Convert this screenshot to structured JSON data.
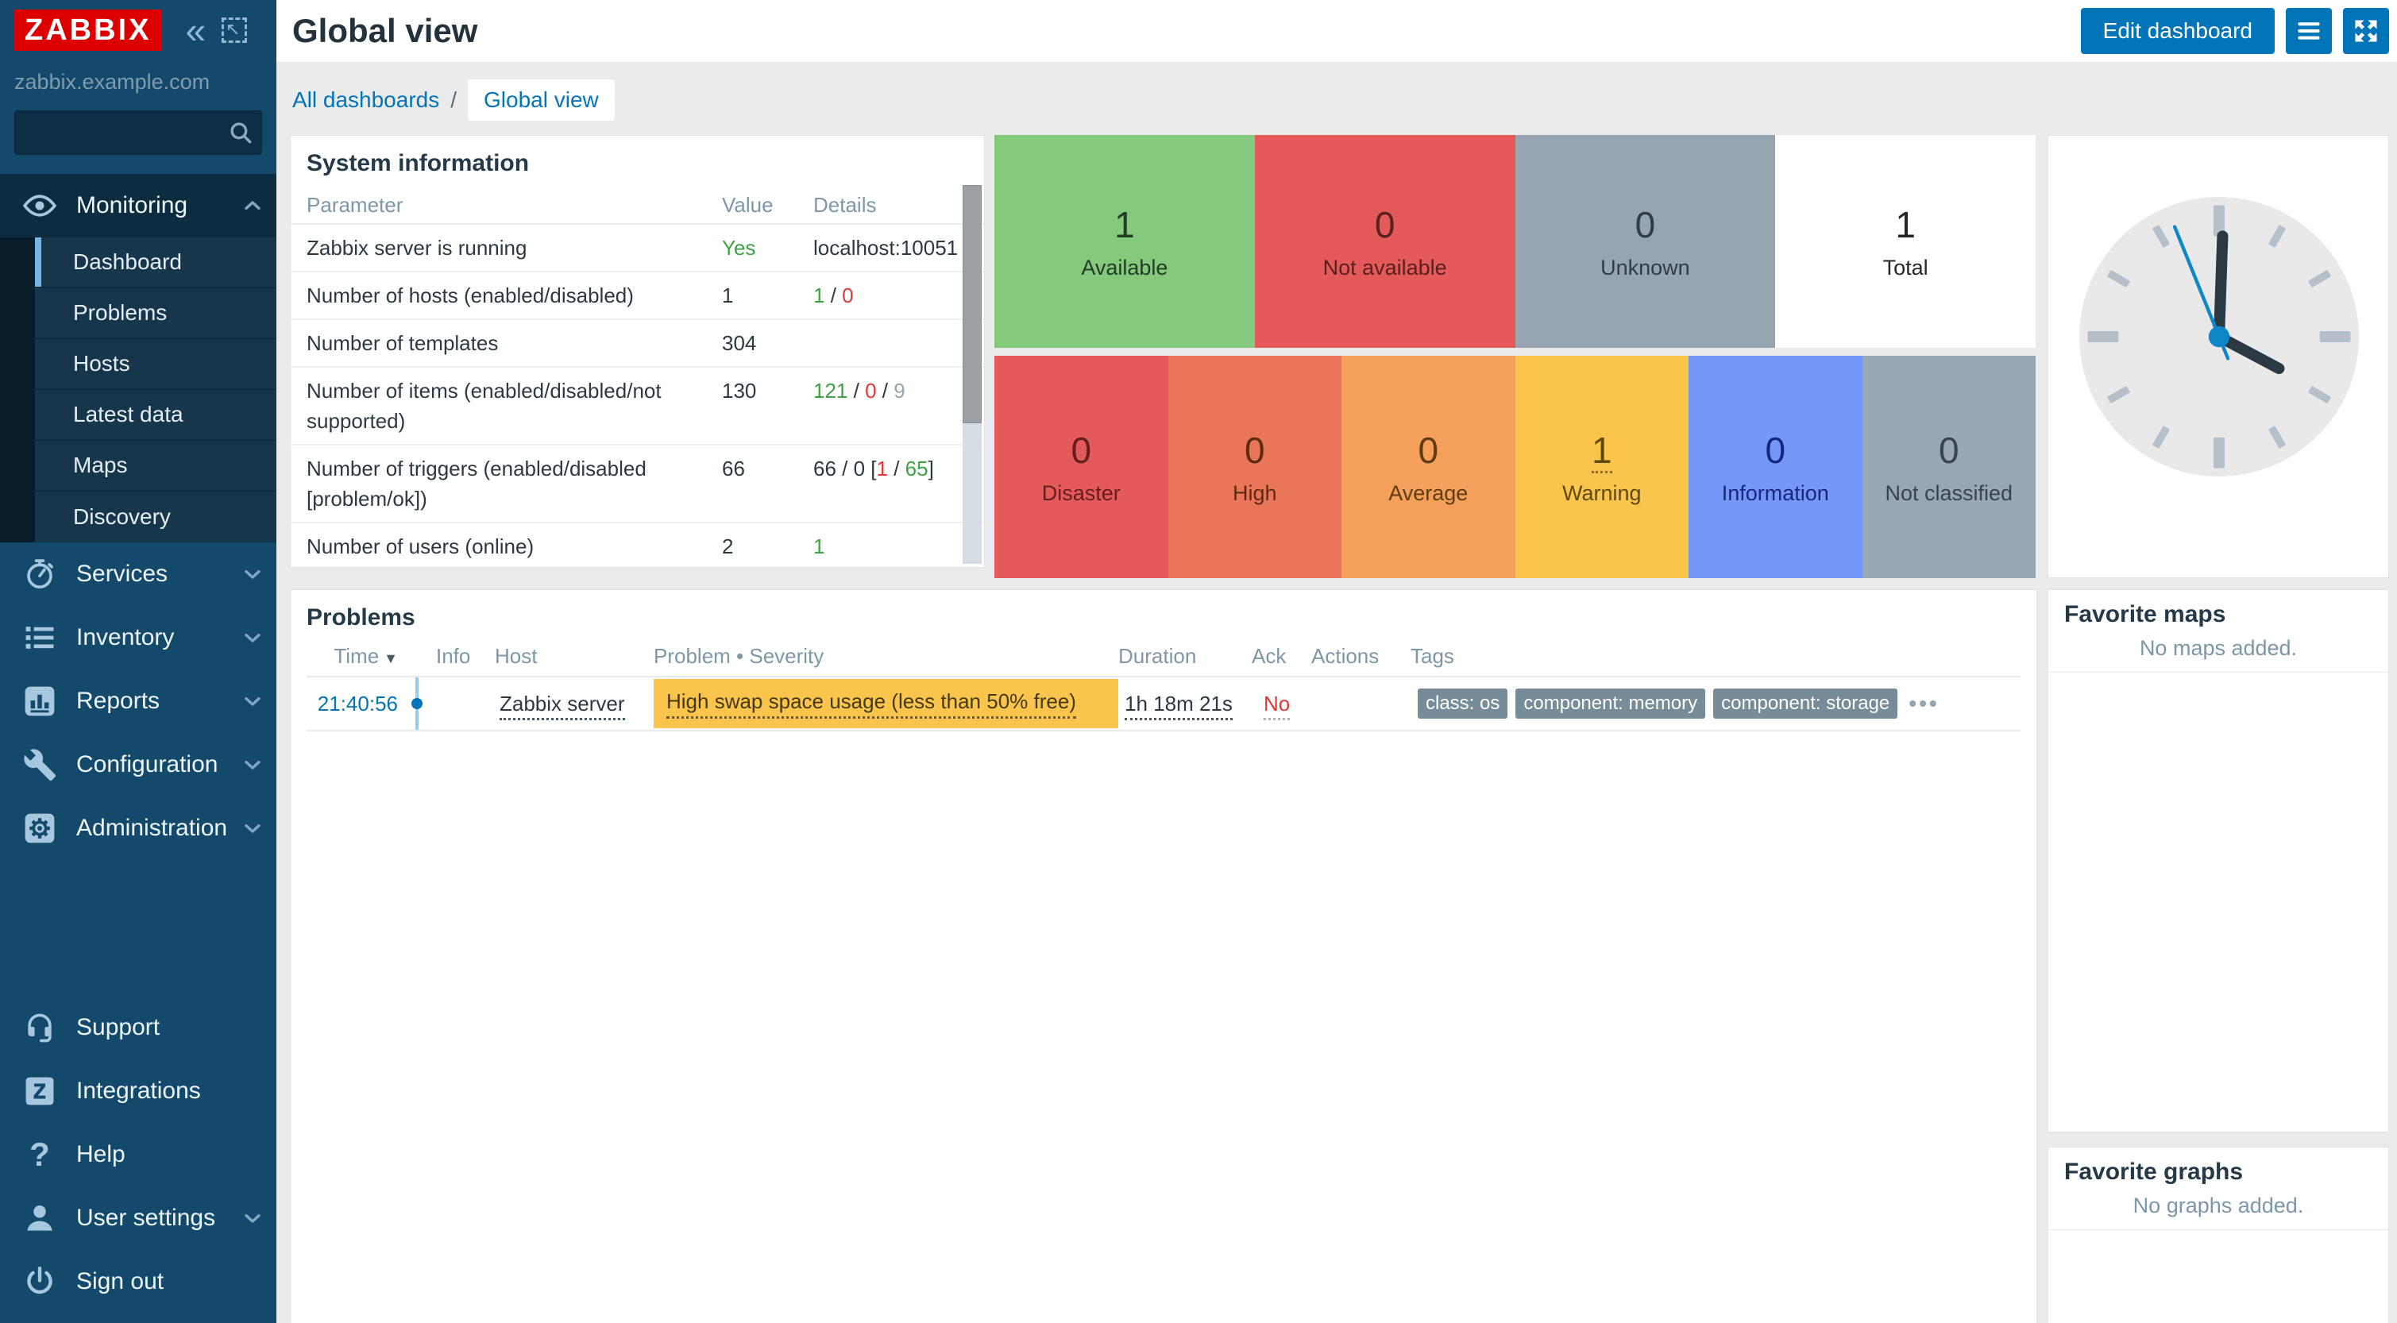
{
  "sidebar": {
    "logo_text": "ZABBIX",
    "server_name": "zabbix.example.com",
    "search": {
      "placeholder": ""
    },
    "sections": [
      {
        "label": "Monitoring",
        "icon": "eye-icon",
        "active": true,
        "expanded": true,
        "submenu": [
          {
            "label": "Dashboard",
            "active": true
          },
          {
            "label": "Problems"
          },
          {
            "label": "Hosts"
          },
          {
            "label": "Latest data"
          },
          {
            "label": "Maps"
          },
          {
            "label": "Discovery"
          }
        ]
      },
      {
        "label": "Services",
        "icon": "stopwatch-icon"
      },
      {
        "label": "Inventory",
        "icon": "list-icon"
      },
      {
        "label": "Reports",
        "icon": "bar-chart-icon"
      },
      {
        "label": "Configuration",
        "icon": "wrench-icon"
      },
      {
        "label": "Administration",
        "icon": "gear-icon"
      }
    ],
    "footer": [
      {
        "label": "Support",
        "icon": "headset-icon"
      },
      {
        "label": "Integrations",
        "icon": "z-square-icon"
      },
      {
        "label": "Help",
        "icon": "question-icon"
      },
      {
        "label": "User settings",
        "icon": "user-icon",
        "chevron": true
      },
      {
        "label": "Sign out",
        "icon": "power-icon"
      }
    ]
  },
  "header": {
    "title": "Global view",
    "edit_button": "Edit dashboard"
  },
  "breadcrumb": {
    "links": [
      "All dashboards"
    ],
    "separator": "/",
    "current": "Global view"
  },
  "system_information": {
    "title": "System information",
    "columns": [
      "Parameter",
      "Value",
      "Details"
    ],
    "rows": [
      {
        "parameter": "Zabbix server is running",
        "value": "Yes",
        "value_color": "#3fa243",
        "details": [
          {
            "text": "localhost:10051"
          }
        ]
      },
      {
        "parameter": "Number of hosts (enabled/disabled)",
        "value": "1",
        "details": [
          {
            "text": "1",
            "color": "#3fa243"
          },
          {
            "text": " / "
          },
          {
            "text": "0",
            "color": "#e33734"
          }
        ]
      },
      {
        "parameter": "Number of templates",
        "value": "304",
        "details": []
      },
      {
        "parameter": "Number of items (enabled/disabled/not supported)",
        "value": "130",
        "details": [
          {
            "text": "121",
            "color": "#3fa243"
          },
          {
            "text": " / "
          },
          {
            "text": "0",
            "color": "#e33734"
          },
          {
            "text": " / "
          },
          {
            "text": "9",
            "color": "#97a5af"
          }
        ]
      },
      {
        "parameter": "Number of triggers (enabled/disabled [problem/ok])",
        "value": "66",
        "details": [
          {
            "text": "66 / 0 ["
          },
          {
            "text": "1",
            "color": "#e33734"
          },
          {
            "text": " / "
          },
          {
            "text": "65",
            "color": "#3fa243"
          },
          {
            "text": "]"
          }
        ]
      },
      {
        "parameter": "Number of users (online)",
        "value": "2",
        "details": [
          {
            "text": "1",
            "color": "#3fa243"
          }
        ]
      }
    ]
  },
  "host_availability": {
    "blocks": [
      {
        "value": "1",
        "label": "Available",
        "bg": "#85c97d",
        "fg": "#233c26"
      },
      {
        "value": "0",
        "label": "Not available",
        "bg": "#e45959",
        "fg": "#5a201d"
      },
      {
        "value": "0",
        "label": "Unknown",
        "bg": "#97a5b1",
        "fg": "#323c44"
      },
      {
        "value": "1",
        "label": "Total",
        "bg": "#ffffff",
        "fg": "#262626"
      }
    ]
  },
  "problems_by_severity": {
    "blocks": [
      {
        "value": "0",
        "label": "Disaster",
        "bg": "#e45959",
        "fg": "#641f1c"
      },
      {
        "value": "0",
        "label": "High",
        "bg": "#e97659",
        "fg": "#5e2a10"
      },
      {
        "value": "0",
        "label": "Average",
        "bg": "#f4a05a",
        "fg": "#5e3c0e"
      },
      {
        "value": "1",
        "label": "Warning",
        "bg": "#fbc44d",
        "fg": "#5f4a0e",
        "link": true
      },
      {
        "value": "0",
        "label": "Information",
        "bg": "#7598f7",
        "fg": "#18277e"
      },
      {
        "value": "0",
        "label": "Not classified",
        "bg": "#99a7b3",
        "fg": "#394450"
      }
    ]
  },
  "problems": {
    "title": "Problems",
    "columns": [
      "Time",
      "",
      "Info",
      "Host",
      "Problem • Severity",
      "Duration",
      "Ack",
      "Actions",
      "Tags"
    ],
    "sort_indicator": "▼",
    "rows": [
      {
        "time": "21:40:56",
        "host": "Zabbix server",
        "problem": "High swap space usage (less than 50% free)",
        "severity_bg": "#fbc44d",
        "duration": "1h 18m 21s",
        "ack": "No",
        "tags": [
          "class: os",
          "component: memory",
          "component: storage"
        ],
        "more": "•••"
      }
    ]
  },
  "favorite_maps": {
    "title": "Favorite maps",
    "empty": "No maps added."
  },
  "favorite_graphs": {
    "title": "Favorite graphs",
    "empty": "No graphs added."
  },
  "colors": {
    "accent": "#0275b8",
    "brand_red": "#dd0000",
    "warning": "#fbc44d",
    "ok_green": "#3fa243",
    "problem_red": "#e33734"
  }
}
